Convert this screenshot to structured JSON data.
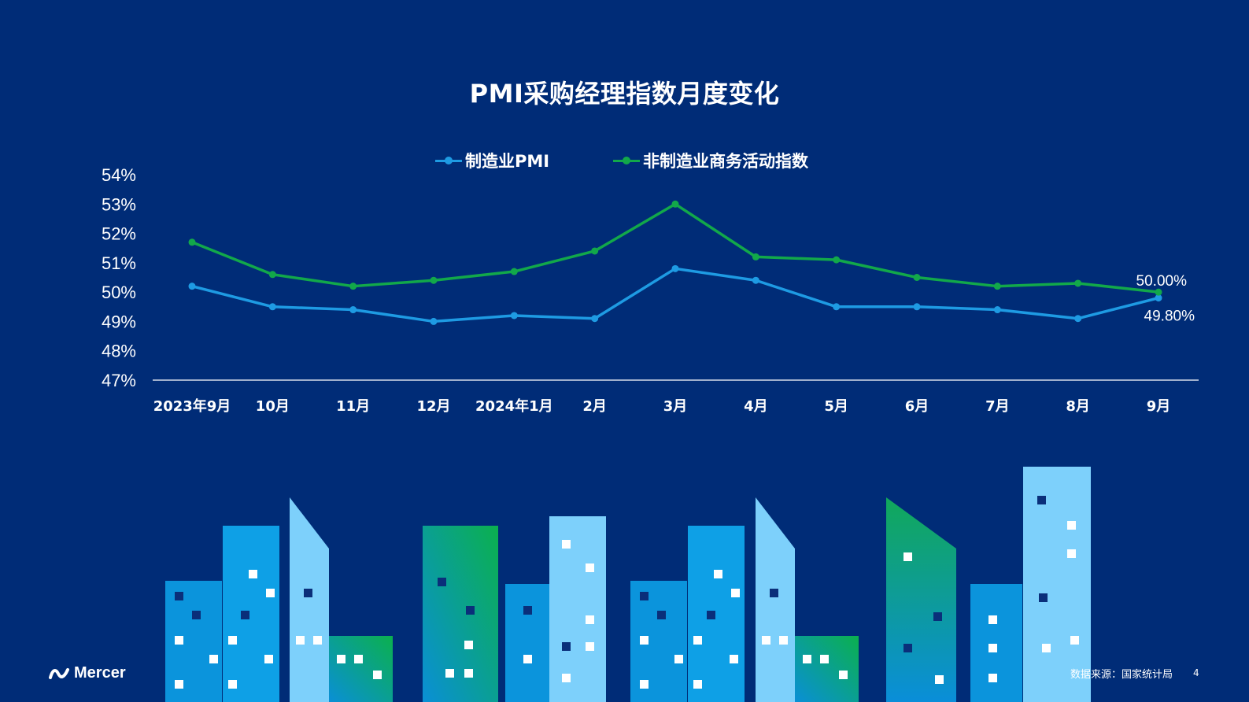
{
  "slide": {
    "title": "PMI采购经理指数月度变化",
    "source": "数据来源：国家统计局",
    "page_number": "4",
    "brand": "Mercer"
  },
  "colors": {
    "background": "#002c77",
    "manufacturing": "#1e9be3",
    "non_manufacturing": "#12a84a"
  },
  "chart_data": {
    "type": "line",
    "title": "PMI采购经理指数月度变化",
    "x": [
      "2023年9月",
      "10月",
      "11月",
      "12月",
      "2024年1月",
      "2月",
      "3月",
      "4月",
      "5月",
      "6月",
      "7月",
      "8月",
      "9月"
    ],
    "y_ticks": [
      "54%",
      "53%",
      "52%",
      "51%",
      "50%",
      "49%",
      "48%",
      "47%"
    ],
    "ylim": [
      47,
      54
    ],
    "unit": "%",
    "legend_position": "top-center",
    "grid": false,
    "series": [
      {
        "name": "制造业PMI",
        "color": "#1e9be3",
        "values": [
          50.2,
          49.5,
          49.4,
          49.0,
          49.2,
          49.1,
          50.8,
          50.4,
          49.5,
          49.5,
          49.4,
          49.1,
          49.8
        ],
        "end_label": "49.80%"
      },
      {
        "name": "非制造业商务活动指数",
        "color": "#12a84a",
        "values": [
          51.7,
          50.6,
          50.2,
          50.4,
          50.7,
          51.4,
          53.0,
          51.2,
          51.1,
          50.5,
          50.2,
          50.3,
          50.0
        ],
        "end_label": "50.00%"
      }
    ]
  }
}
